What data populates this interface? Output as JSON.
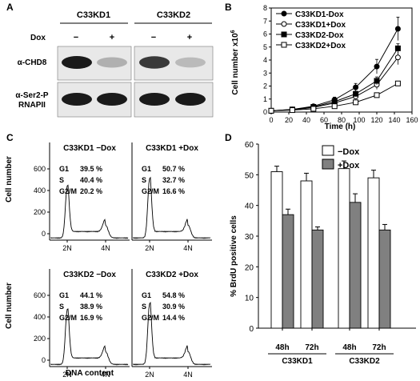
{
  "panels": {
    "A": {
      "letter": "A",
      "groups": [
        "C33KD1",
        "C33KD2"
      ],
      "dox_label": "Dox",
      "lane_labels": [
        "−",
        "+"
      ],
      "rows": [
        {
          "label_lines": [
            "α-CHD8"
          ],
          "band_intensity": {
            "C33KD1": [
              1.0,
              0.25
            ],
            "C33KD2": [
              0.85,
              0.2
            ]
          }
        },
        {
          "label_lines": [
            "α-Ser2-P",
            "RNAPII"
          ],
          "band_intensity": {
            "C33KD1": [
              1.0,
              1.0
            ],
            "C33KD2": [
              1.0,
              1.0
            ]
          }
        }
      ]
    },
    "B": {
      "letter": "B"
    },
    "C": {
      "letter": "C",
      "ylabel": "Cell number",
      "xlabel": "DNA content",
      "histograms": [
        {
          "title": "C33KD1  −Dox",
          "stats": [
            [
              "G1",
              "39.5 %"
            ],
            [
              "S",
              "40.4 %"
            ],
            [
              "G2/M",
              "20.2 %"
            ]
          ]
        },
        {
          "title": "C33KD1  +Dox",
          "stats": [
            [
              "G1",
              "50.7 %"
            ],
            [
              "S",
              "32.7 %"
            ],
            [
              "G2/M",
              "16.6 %"
            ]
          ]
        },
        {
          "title": "C33KD2  −Dox",
          "stats": [
            [
              "G1",
              "44.1 %"
            ],
            [
              "S",
              "38.9 %"
            ],
            [
              "G2/M",
              "16.9 %"
            ]
          ]
        },
        {
          "title": "C33KD2  +Dox",
          "stats": [
            [
              "G1",
              "54.8 %"
            ],
            [
              "S",
              "30.9 %"
            ],
            [
              "G2/M",
              "14.4 %"
            ]
          ]
        }
      ],
      "yticks": [
        "600",
        "400",
        "200",
        "0"
      ],
      "xticks": [
        "2N",
        "4N"
      ]
    },
    "D": {
      "letter": "D"
    }
  },
  "chart_data": [
    {
      "type": "line",
      "panel": "B",
      "xlabel": "Time (h)",
      "ylabel": "Cell number x10",
      "ylabel_sup": "6",
      "xlim": [
        0,
        160
      ],
      "ylim": [
        0,
        8
      ],
      "xticks": [
        0,
        20,
        40,
        60,
        80,
        100,
        120,
        140,
        160
      ],
      "yticks": [
        0,
        1,
        2,
        3,
        4,
        5,
        6,
        7,
        8
      ],
      "legend_position": "top-left",
      "x": [
        0,
        24,
        48,
        72,
        96,
        120,
        144
      ],
      "series": [
        {
          "name": "C33KD1-Dox",
          "marker": "filled-circle",
          "values": [
            0.1,
            0.2,
            0.45,
            0.95,
            1.9,
            3.5,
            6.4
          ],
          "errors": [
            0.02,
            0.05,
            0.1,
            0.2,
            0.3,
            0.55,
            0.9
          ]
        },
        {
          "name": "C33KD1+Dox",
          "marker": "open-circle",
          "values": [
            0.1,
            0.18,
            0.35,
            0.7,
            1.2,
            2.1,
            4.2
          ],
          "errors": [
            0.02,
            0.04,
            0.08,
            0.15,
            0.2,
            0.35,
            0.55
          ]
        },
        {
          "name": "C33KD2-Dox",
          "marker": "filled-square",
          "values": [
            0.1,
            0.2,
            0.4,
            0.8,
            1.4,
            2.4,
            4.9
          ],
          "errors": [
            0.02,
            0.04,
            0.08,
            0.1,
            0.2,
            0.3,
            0.35
          ]
        },
        {
          "name": "C33KD2+Dox",
          "marker": "open-square",
          "values": [
            0.1,
            0.15,
            0.25,
            0.45,
            0.75,
            1.3,
            2.2
          ],
          "errors": [
            0.02,
            0.03,
            0.05,
            0.06,
            0.08,
            0.1,
            0.12
          ]
        }
      ]
    },
    {
      "type": "bar",
      "panel": "D",
      "ylabel": "% BrdU positive cells",
      "ylim": [
        0,
        60
      ],
      "yticks": [
        0,
        10,
        20,
        30,
        40,
        50,
        60
      ],
      "categories": [
        "48h",
        "72h",
        "48h",
        "72h"
      ],
      "groups": [
        {
          "label": "C33KD1",
          "span": [
            0,
            1
          ]
        },
        {
          "label": "C33KD2",
          "span": [
            2,
            3
          ]
        }
      ],
      "legend_position": "top-right",
      "series": [
        {
          "name": "−Dox",
          "fill": "#ffffff",
          "values": [
            51,
            48,
            52,
            49
          ],
          "errors": [
            1.8,
            2.5,
            2.5,
            2.5
          ]
        },
        {
          "name": "+Dox",
          "fill": "#808080",
          "values": [
            37,
            32,
            41,
            32
          ],
          "errors": [
            1.8,
            1.0,
            2.8,
            1.8
          ]
        }
      ]
    }
  ]
}
